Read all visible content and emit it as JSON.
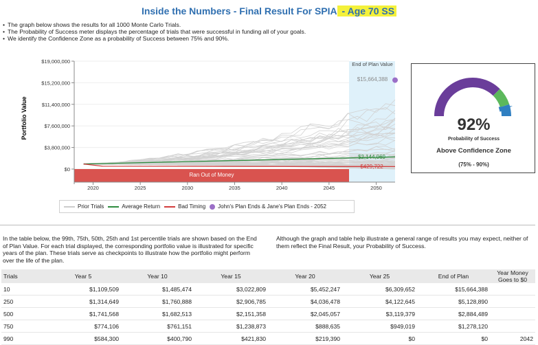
{
  "header": {
    "title_main": "Inside the Numbers - Final Result For SPIA",
    "title_highlight": " - Age 70 SS"
  },
  "bullets": [
    "The graph below shows the results for all 1000 Monte Carlo Trials.",
    "The Probability of Success meter displays the percentage of trials that were successful in funding all of your goals.",
    "We identify the Confidence Zone as a probability of Success between 75% and 90%."
  ],
  "chart_data": {
    "type": "line",
    "ylabel": "Portfolio Value",
    "y_ticks": [
      "$19,000,000",
      "$15,200,000",
      "$11,400,000",
      "$7,600,000",
      "$3,800,000",
      "$0"
    ],
    "y_tick_values": [
      19000000,
      15200000,
      11400000,
      7600000,
      3800000,
      0
    ],
    "ylim": [
      0,
      19000000
    ],
    "x_ticks": [
      "2020",
      "2025",
      "2030",
      "2035",
      "2040",
      "2045",
      "2050"
    ],
    "x_tick_values": [
      2020,
      2025,
      2030,
      2035,
      2040,
      2045,
      2050
    ],
    "xlim": [
      2018,
      2052
    ],
    "series": [
      {
        "name": "Average Return",
        "color": "#2e8b3e",
        "x": [
          2019,
          2052
        ],
        "y": [
          900000,
          2144069
        ]
      },
      {
        "name": "Bad Timing",
        "color": "#d23c3c",
        "x": [
          2019,
          2021,
          2052
        ],
        "y": [
          900000,
          500000,
          429722
        ]
      }
    ],
    "end_of_plan": {
      "label": "End of Plan Value",
      "top_value": "$15,664,388",
      "top_value_num": 15664388,
      "average_value": "$2,144,069",
      "bad_timing_value": "$429,722"
    },
    "ran_out_label": "Ran Out of Money",
    "legend": [
      {
        "label": "Prior Trials",
        "color": "#cccccc"
      },
      {
        "label": "Average Return",
        "color": "#2e8b3e"
      },
      {
        "label": "Bad Timing",
        "color": "#d23c3c"
      },
      {
        "label": "John's Plan Ends & Jane's Plan Ends - 2052",
        "color": "#9b6fc7"
      }
    ],
    "legend_placement": "bottom"
  },
  "gauge": {
    "percent_value": 92,
    "percent_label": "92%",
    "subtitle": "Probability of Success",
    "zone_label": "Above Confidence Zone",
    "range_label": "(75% - 90%)",
    "colors": {
      "low": "#6a3d9a",
      "confidence": "#5cb85c",
      "high": "#2f7fc1"
    }
  },
  "paragraphs": {
    "left": "In the table below, the 99th, 75th, 50th, 25th and 1st percentile trials are shown based on the End of Plan Value. For each trial displayed, the corresponding portfolio value is illustrated for specific years of the plan. These trials serve as checkpoints to illustrate how the portfolio might perform over the life of the plan.",
    "right": "Although the graph and table help illustrate a general range of results you may expect, neither of them reflect the Final Result, your Probability of Success."
  },
  "table": {
    "headers": [
      "Trials",
      "Year 5",
      "Year 10",
      "Year 15",
      "Year 20",
      "Year 25",
      "End of Plan",
      "Year Money Goes to $0"
    ],
    "rows": [
      [
        "10",
        "$1,109,509",
        "$1,485,474",
        "$3,022,809",
        "$5,452,247",
        "$6,309,652",
        "$15,664,388",
        ""
      ],
      [
        "250",
        "$1,314,649",
        "$1,760,888",
        "$2,906,785",
        "$4,036,478",
        "$4,122,645",
        "$5,128,890",
        ""
      ],
      [
        "500",
        "$1,741,568",
        "$1,682,513",
        "$2,151,358",
        "$2,045,057",
        "$3,119,379",
        "$2,884,489",
        ""
      ],
      [
        "750",
        "$774,106",
        "$761,151",
        "$1,238,873",
        "$888,635",
        "$949,019",
        "$1,278,120",
        ""
      ],
      [
        "990",
        "$584,300",
        "$400,790",
        "$421,830",
        "$219,390",
        "$0",
        "$0",
        "2042"
      ]
    ]
  }
}
